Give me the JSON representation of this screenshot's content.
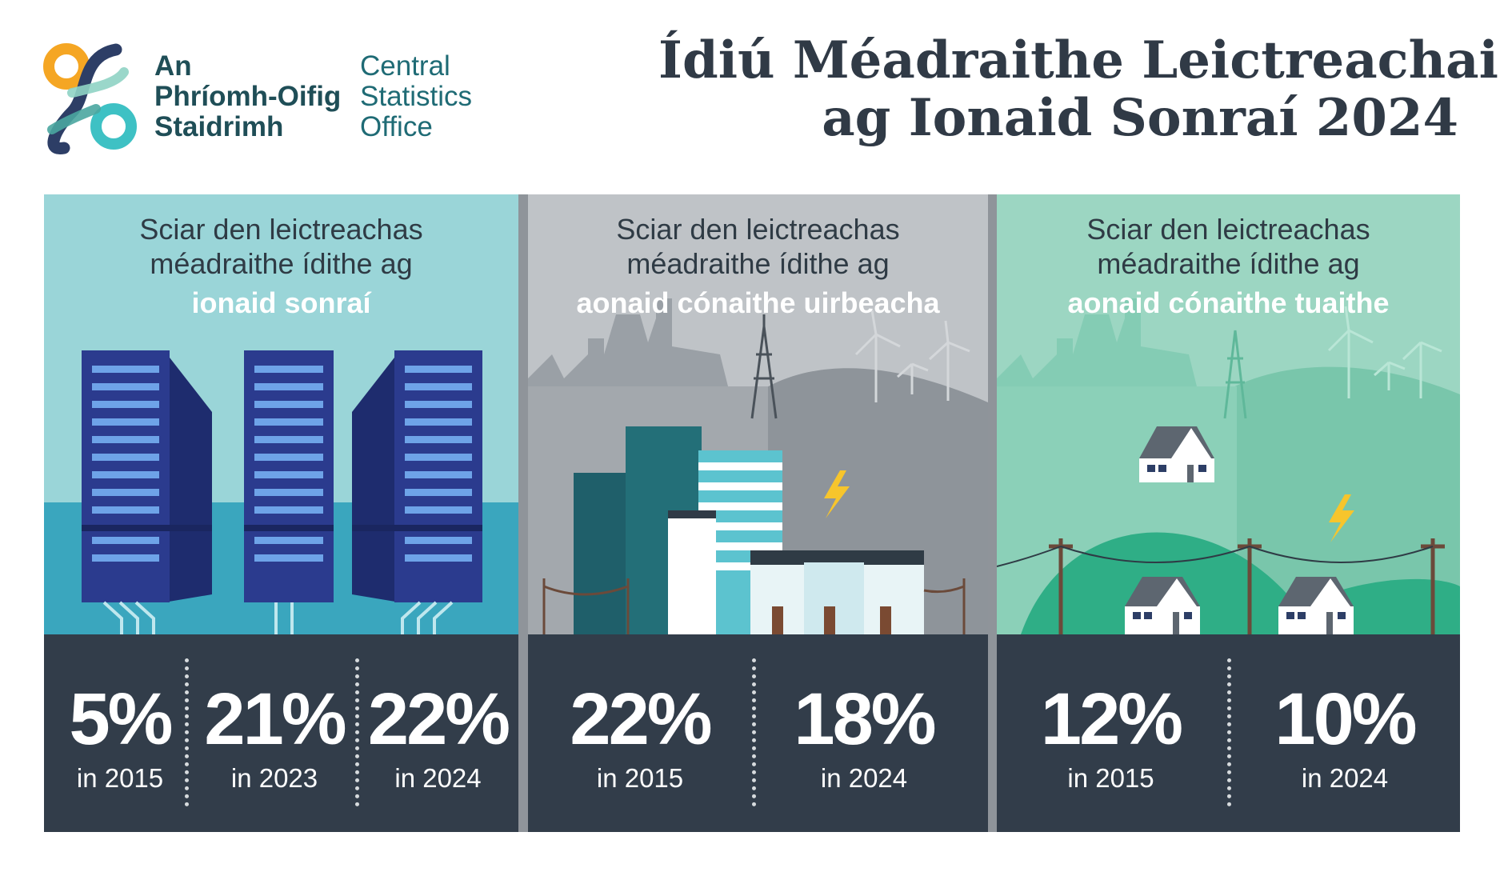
{
  "logo": {
    "irish_lines": [
      "An",
      "Phríomh-Oifig",
      "Staidrimh"
    ],
    "english_lines": [
      "Central",
      "Statistics",
      "Office"
    ]
  },
  "title_lines": [
    "Ídiú Méadraithe Leictreachais",
    "ag Ionaid Sonraí 2024"
  ],
  "colors": {
    "data_centres_bg": "#9ad5d8",
    "urban_bg": "#bfc3c7",
    "rural_bg": "#9cd6c2",
    "stats_bar": "#323d4a",
    "logo_orange": "#f5a623",
    "logo_teal": "#3ec1c4",
    "logo_navy": "#2d3e66",
    "lightning": "#f7c52c"
  },
  "panels": [
    {
      "lines": [
        "Sciar den leictreachas",
        "méadraithe ídithe ag"
      ],
      "highlight": "ionaid sonraí",
      "stats": [
        {
          "value": "5%",
          "label": "in 2015"
        },
        {
          "value": "21%",
          "label": "in 2023"
        },
        {
          "value": "22%",
          "label": "in 2024"
        }
      ]
    },
    {
      "lines": [
        "Sciar den leictreachas",
        "méadraithe ídithe ag"
      ],
      "highlight": "aonaid cónaithe uirbeacha",
      "stats": [
        {
          "value": "22%",
          "label": "in 2015"
        },
        {
          "value": "18%",
          "label": "in 2024"
        }
      ]
    },
    {
      "lines": [
        "Sciar den leictreachas",
        "méadraithe ídithe ag"
      ],
      "highlight": "aonaid cónaithe tuaithe",
      "stats": [
        {
          "value": "12%",
          "label": "in 2015"
        },
        {
          "value": "10%",
          "label": "in 2024"
        }
      ]
    }
  ]
}
